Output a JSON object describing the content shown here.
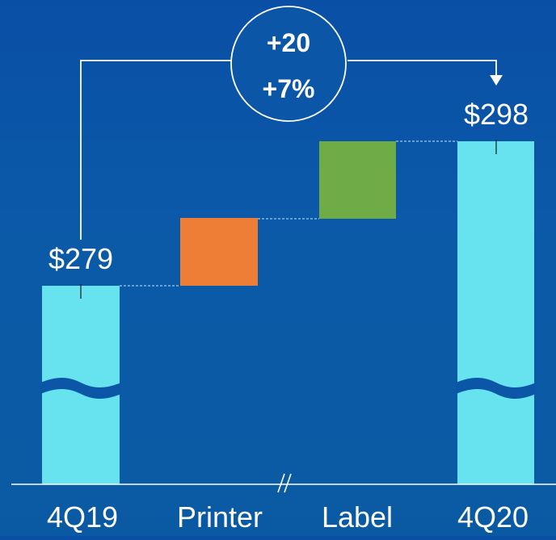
{
  "chart_data": {
    "type": "bar",
    "subtype": "waterfall",
    "categories": [
      "4Q19",
      "Printer",
      "Label",
      "4Q20"
    ],
    "start_value": 279,
    "end_value": 298,
    "start_label": "$279",
    "end_label": "$298",
    "change_label": "+20",
    "change_pct_label": "+7%",
    "colors": {
      "total": "#66e3ee",
      "printer": "#ee7d35",
      "label": "#70ac46",
      "axis": "#ffffff",
      "background": "#0b56a7"
    },
    "axis_break": true,
    "ylim": [
      0,
      300
    ]
  }
}
